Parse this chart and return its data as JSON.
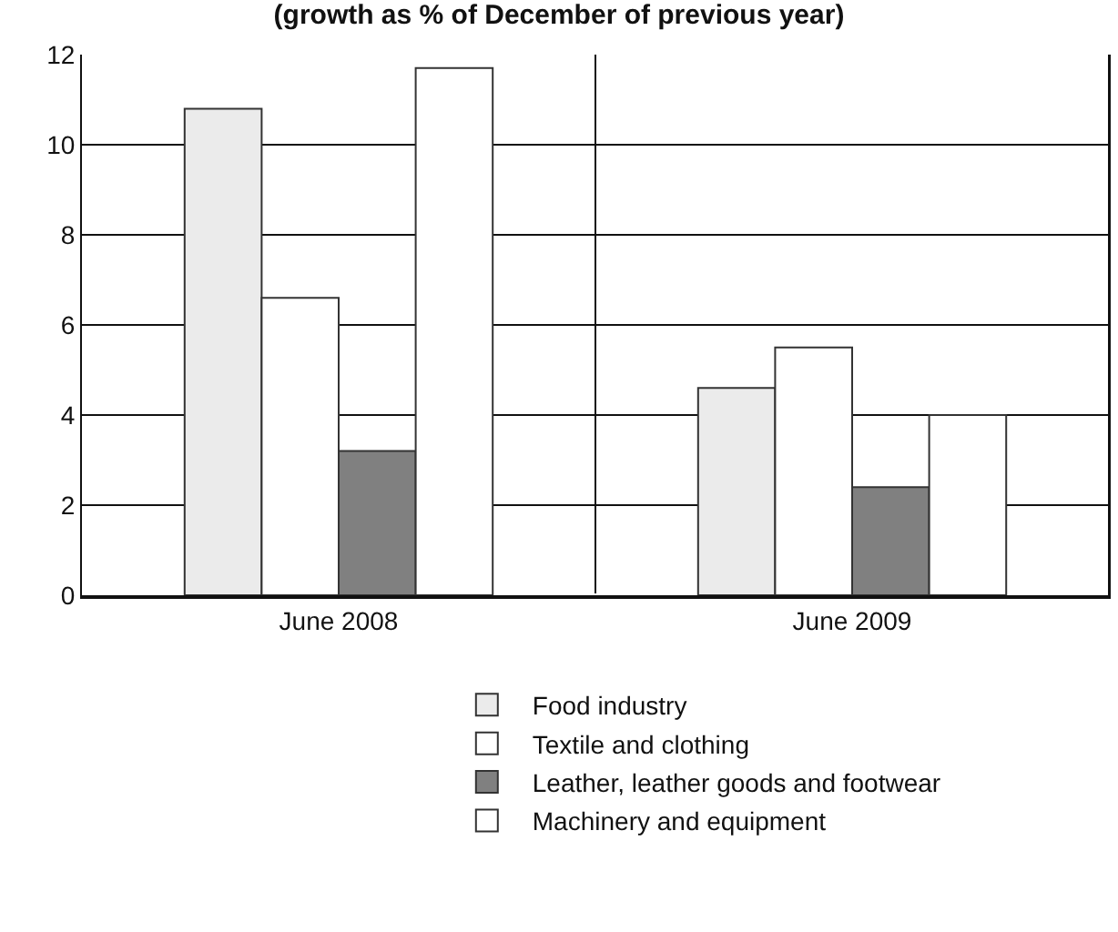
{
  "chart_data": {
    "type": "bar",
    "title": "(growth as % of December of previous year)",
    "categories": [
      "June 2008",
      "June 2009"
    ],
    "series": [
      {
        "name": "Food industry",
        "color": "#ebebeb",
        "values": [
          10.8,
          4.6
        ]
      },
      {
        "name": "Textile and clothing",
        "color": "#ffffff",
        "values": [
          6.6,
          5.5
        ]
      },
      {
        "name": "Leather, leather goods and footwear",
        "color": "#808080",
        "values": [
          3.2,
          2.4
        ]
      },
      {
        "name": "Machinery and equipment",
        "color": "#ffffff",
        "values": [
          11.7,
          4.0
        ]
      }
    ],
    "ylim": [
      0,
      12
    ],
    "yticks": [
      0,
      2,
      4,
      6,
      8,
      10,
      12
    ],
    "grid": true,
    "legend": "bottom"
  }
}
